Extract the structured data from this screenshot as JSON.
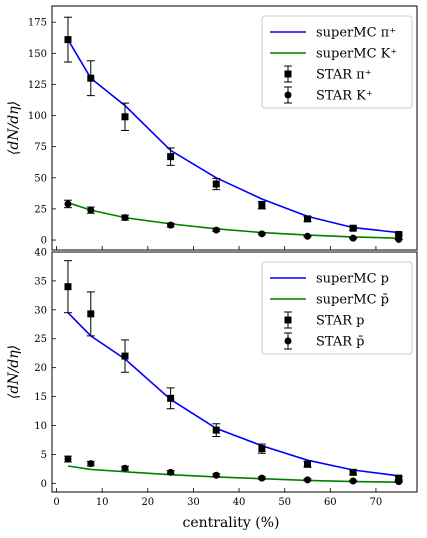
{
  "chart_data": [
    {
      "type": "line",
      "ylabel": "⟨dN/dη⟩",
      "xlim": [
        -1,
        79
      ],
      "ylim": [
        -8,
        188
      ],
      "yticks": [
        0,
        25,
        50,
        75,
        100,
        125,
        150,
        175
      ],
      "legend_position": "top-right",
      "series": [
        {
          "name": "superMC π⁺",
          "kind": "line",
          "color": "#0000ff",
          "x": [
            2.5,
            7.5,
            15,
            25,
            35,
            45,
            55,
            65,
            75
          ],
          "y": [
            161,
            130,
            108,
            72,
            50,
            33,
            19,
            10,
            6
          ]
        },
        {
          "name": "superMC K⁺",
          "kind": "line",
          "color": "#008000",
          "x": [
            2.5,
            7.5,
            15,
            25,
            35,
            45,
            55,
            65,
            75
          ],
          "y": [
            30,
            24,
            18,
            13,
            9,
            6,
            4,
            2.5,
            1.5
          ]
        },
        {
          "name": "STAR π⁺",
          "kind": "errorbar",
          "marker": "square",
          "x": [
            2.5,
            7.5,
            15,
            25,
            35,
            45,
            55,
            65,
            75
          ],
          "y": [
            161,
            130,
            99,
            67,
            45,
            28,
            17,
            9.5,
            4.5
          ],
          "err": [
            18,
            14,
            11,
            7,
            4.5,
            3,
            2,
            1.5,
            1
          ]
        },
        {
          "name": "STAR K⁺",
          "kind": "errorbar",
          "marker": "circle",
          "x": [
            2.5,
            7.5,
            15,
            25,
            35,
            45,
            55,
            65,
            75
          ],
          "y": [
            29,
            24,
            18,
            12,
            8,
            5,
            3,
            1.5,
            0.5
          ],
          "err": [
            3,
            2.5,
            2,
            1.5,
            1,
            0.7,
            0.5,
            0.3,
            0.2
          ]
        }
      ]
    },
    {
      "type": "line",
      "ylabel": "⟨dN/dη⟩",
      "xlabel": "centrality (%)",
      "xlim": [
        -1,
        79
      ],
      "ylim": [
        -1.5,
        40
      ],
      "yticks": [
        0,
        5,
        10,
        15,
        20,
        25,
        30,
        35,
        40
      ],
      "xticks": [
        0,
        10,
        20,
        30,
        40,
        50,
        60,
        70
      ],
      "legend_position": "top-right",
      "series": [
        {
          "name": "superMC p",
          "kind": "line",
          "color": "#0000ff",
          "x": [
            2.5,
            7.5,
            15,
            25,
            35,
            45,
            55,
            65,
            75
          ],
          "y": [
            29.5,
            25.5,
            21.5,
            14.5,
            9.5,
            6.5,
            4,
            2.3,
            1.3
          ]
        },
        {
          "name": "superMC p̄",
          "kind": "line",
          "color": "#008000",
          "x": [
            2.5,
            7.5,
            15,
            25,
            35,
            45,
            55,
            65,
            75
          ],
          "y": [
            3.0,
            2.4,
            2.0,
            1.5,
            1.1,
            0.8,
            0.5,
            0.3,
            0.2
          ]
        },
        {
          "name": "STAR p",
          "kind": "errorbar",
          "marker": "square",
          "x": [
            2.5,
            7.5,
            15,
            25,
            35,
            45,
            55,
            65,
            75
          ],
          "y": [
            34,
            29.3,
            22,
            14.7,
            9.2,
            6,
            3.3,
            1.9,
            0.9
          ],
          "err": [
            4.5,
            3.8,
            2.8,
            1.8,
            1.1,
            0.8,
            0.5,
            0.4,
            0.3
          ]
        },
        {
          "name": "STAR p̄",
          "kind": "errorbar",
          "marker": "circle",
          "x": [
            2.5,
            7.5,
            15,
            25,
            35,
            45,
            55,
            65,
            75
          ],
          "y": [
            4.2,
            3.4,
            2.6,
            1.9,
            1.4,
            0.9,
            0.6,
            0.4,
            0.3
          ],
          "err": [
            0.5,
            0.4,
            0.35,
            0.3,
            0.25,
            0.2,
            0.15,
            0.12,
            0.1
          ]
        }
      ]
    }
  ]
}
